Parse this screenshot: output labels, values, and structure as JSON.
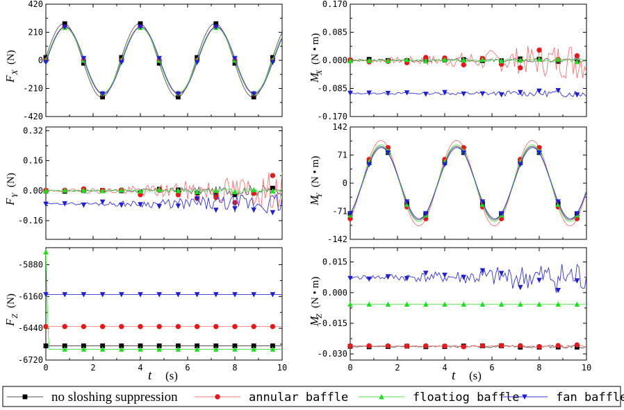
{
  "colors": {
    "no_sloshing": "#000000",
    "annular": "#e31a1c",
    "floating": "#22dd22",
    "fan": "#1f1fcc",
    "line_no_sloshing": "#555555",
    "line_annular": "#ee7777",
    "line_floating": "#55dd55",
    "line_fan": "#3333cc"
  },
  "legend": [
    {
      "key": "no_sloshing",
      "label": "no sloshing suppression",
      "marker": "square"
    },
    {
      "key": "annular",
      "label": "annular baffle",
      "marker": "circle"
    },
    {
      "key": "floating",
      "label": "floatiog baffle",
      "marker": "triangle-up"
    },
    {
      "key": "fan",
      "label": "fan baffle",
      "marker": "triangle-down"
    }
  ],
  "x_axis": {
    "label": "t",
    "unit": "(s)"
  },
  "chart_data": [
    {
      "id": "Fx",
      "type": "line",
      "ylabel": "F",
      "ysub": "X",
      "unit": "(N)",
      "ylim": [
        -420,
        420
      ],
      "yticks": [
        "420",
        "210",
        "0",
        "-210",
        "-420"
      ],
      "ytick_values": [
        420,
        210,
        0,
        -210,
        -420
      ],
      "xlim": [
        0,
        10
      ],
      "xticks": [
        "0",
        "2",
        "4",
        "6",
        "8",
        "10"
      ],
      "xticks_shown": false,
      "series": [
        {
          "key": "no_sloshing",
          "model": "sine",
          "amp": 275,
          "period": 3.2,
          "phase": 0.04,
          "offset": 0,
          "noise": 0
        },
        {
          "key": "annular",
          "model": "sine",
          "amp": 250,
          "period": 3.2,
          "phase": 0.0,
          "offset": 0,
          "noise": 0
        },
        {
          "key": "floating",
          "model": "sine",
          "amp": 245,
          "period": 3.2,
          "phase": 0.0,
          "offset": 0,
          "noise": 0
        },
        {
          "key": "fan",
          "model": "sine",
          "amp": 250,
          "period": 3.2,
          "phase": -0.03,
          "offset": 0,
          "noise": 0
        }
      ]
    },
    {
      "id": "Mx",
      "type": "line",
      "ylabel": "M",
      "ysub": "X",
      "unit": "(N • m)",
      "ylim": [
        -0.17,
        0.17
      ],
      "yticks": [
        "0.170",
        "0.085",
        "0.000",
        "-0.085",
        "-0.170"
      ],
      "ytick_values": [
        0.17,
        0.085,
        0,
        -0.085,
        -0.17
      ],
      "xlim": [
        0,
        10
      ],
      "xticks": [
        "0",
        "2",
        "4",
        "6",
        "8",
        "10"
      ],
      "xticks_shown": false,
      "series": [
        {
          "key": "no_sloshing",
          "model": "noise",
          "offset": 0.0,
          "noise": 0.004,
          "grow": 0.004,
          "seed": 3
        },
        {
          "key": "annular",
          "model": "noise",
          "offset": 0.0,
          "noise": 0.003,
          "grow": 0.06,
          "seed": 7
        },
        {
          "key": "floating",
          "model": "noise",
          "offset": 0.0,
          "noise": 0.002,
          "grow": 0.004,
          "seed": 11
        },
        {
          "key": "fan",
          "model": "noise",
          "offset": -0.1,
          "noise": 0.002,
          "grow": 0.01,
          "seed": 13
        }
      ]
    },
    {
      "id": "Fy",
      "type": "line",
      "ylabel": "F",
      "ysub": "Y",
      "unit": "(N)",
      "ylim": [
        -0.26,
        0.34
      ],
      "yticks": [
        "0.32",
        "0.16",
        "0.00",
        "-0.16"
      ],
      "ytick_values": [
        0.32,
        0.16,
        0,
        -0.16
      ],
      "xlim": [
        0,
        10
      ],
      "xticks": [
        "0",
        "2",
        "4",
        "6",
        "8",
        "10"
      ],
      "xticks_shown": false,
      "series": [
        {
          "key": "no_sloshing",
          "model": "noise",
          "offset": 0.0,
          "noise": 0.003,
          "grow": 0.03,
          "seed": 17
        },
        {
          "key": "annular",
          "model": "noise",
          "offset": 0.0,
          "noise": 0.003,
          "grow": 0.1,
          "seed": 19
        },
        {
          "key": "floating",
          "model": "noise",
          "offset": 0.0,
          "noise": 0.002,
          "grow": 0.01,
          "seed": 23
        },
        {
          "key": "fan",
          "model": "noise",
          "offset": -0.07,
          "noise": 0.002,
          "grow": 0.06,
          "seed": 29
        }
      ]
    },
    {
      "id": "My",
      "type": "line",
      "ylabel": "M",
      "ysub": "Y",
      "unit": "(N • m)",
      "ylim": [
        -142,
        142
      ],
      "yticks": [
        "142",
        "71",
        "0",
        "-71",
        "-142"
      ],
      "ytick_values": [
        142,
        71,
        0,
        -71,
        -142
      ],
      "xlim": [
        0,
        10
      ],
      "xticks": [
        "0",
        "2",
        "4",
        "6",
        "8",
        "10"
      ],
      "xticks_shown": false,
      "series": [
        {
          "key": "no_sloshing",
          "model": "sine",
          "amp": 93,
          "period": 3.2,
          "phase": 1.1,
          "offset": 0,
          "noise": 0,
          "neg": true
        },
        {
          "key": "annular",
          "model": "sine",
          "amp": 108,
          "period": 3.2,
          "phase": 1.1,
          "offset": 0,
          "noise": 0,
          "neg": true
        },
        {
          "key": "floating",
          "model": "sine",
          "amp": 97,
          "period": 3.2,
          "phase": 1.1,
          "offset": 0,
          "noise": 0,
          "neg": true
        },
        {
          "key": "fan",
          "model": "sine",
          "amp": 90,
          "period": 3.2,
          "phase": 1.08,
          "offset": 0,
          "noise": 0,
          "neg": true
        }
      ]
    },
    {
      "id": "Fz",
      "type": "line",
      "ylabel": "F",
      "ysub": "Z",
      "unit": "(N)",
      "ylim": [
        -6720,
        -5730
      ],
      "yticks": [
        "-5880",
        "-6160",
        "-6440",
        "-6720"
      ],
      "ytick_values": [
        -5880,
        -6160,
        -6440,
        -6720
      ],
      "xlim": [
        0,
        10
      ],
      "xticks": [
        "0",
        "2",
        "4",
        "6",
        "8",
        "10"
      ],
      "xticks_shown": true,
      "series": [
        {
          "key": "no_sloshing",
          "model": "flat",
          "offset": -6595,
          "noise": 0
        },
        {
          "key": "annular",
          "model": "flat",
          "offset": -6425,
          "noise": 0
        },
        {
          "key": "floating",
          "model": "flat",
          "offset": -6625,
          "noise": 0,
          "spike": -5768
        },
        {
          "key": "fan",
          "model": "flat",
          "offset": -6143,
          "noise": 0
        }
      ]
    },
    {
      "id": "Mz",
      "type": "line",
      "ylabel": "M",
      "ysub": "Z",
      "unit": "(N • m)",
      "ylim": [
        -0.033,
        0.022
      ],
      "yticks": [
        "0.015",
        "0.000",
        "-0.015",
        "-0.030"
      ],
      "ytick_values": [
        0.015,
        0,
        -0.015,
        -0.03
      ],
      "xlim": [
        0,
        10
      ],
      "xticks": [
        "0",
        "2",
        "4",
        "6",
        "8",
        "10"
      ],
      "xticks_shown": true,
      "series": [
        {
          "key": "no_sloshing",
          "model": "noise",
          "offset": -0.0264,
          "noise": 0.0002,
          "grow": 0.0006,
          "seed": 31
        },
        {
          "key": "annular",
          "model": "noise",
          "offset": -0.0262,
          "noise": 0.0002,
          "grow": 0.0006,
          "seed": 37
        },
        {
          "key": "floating",
          "model": "flat",
          "offset": -0.0057,
          "noise": 0
        },
        {
          "key": "fan",
          "model": "noise",
          "offset": 0.0075,
          "noise": 0.0008,
          "grow": 0.008,
          "seed": 41
        }
      ]
    }
  ]
}
